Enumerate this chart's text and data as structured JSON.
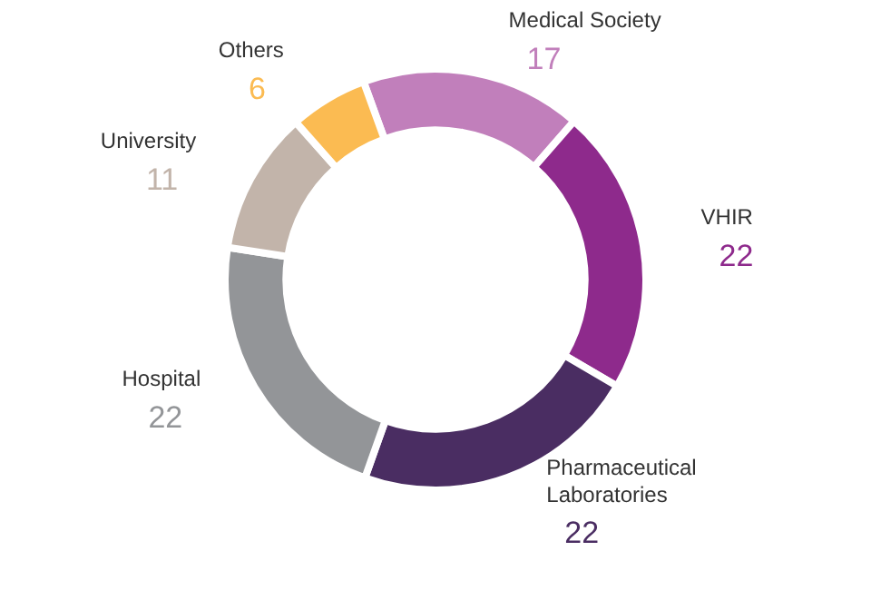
{
  "chart_data": {
    "type": "donut",
    "categories": [
      "Medical Society",
      "VHIR",
      "Pharmaceutical Laboratories",
      "Hospital",
      "University",
      "Others"
    ],
    "values": [
      17,
      22,
      22,
      22,
      11,
      6
    ],
    "colors": [
      "#c17fbb",
      "#8e2a8c",
      "#4a2d62",
      "#939598",
      "#c2b4aa",
      "#fbbb52"
    ],
    "data_labels": true
  }
}
